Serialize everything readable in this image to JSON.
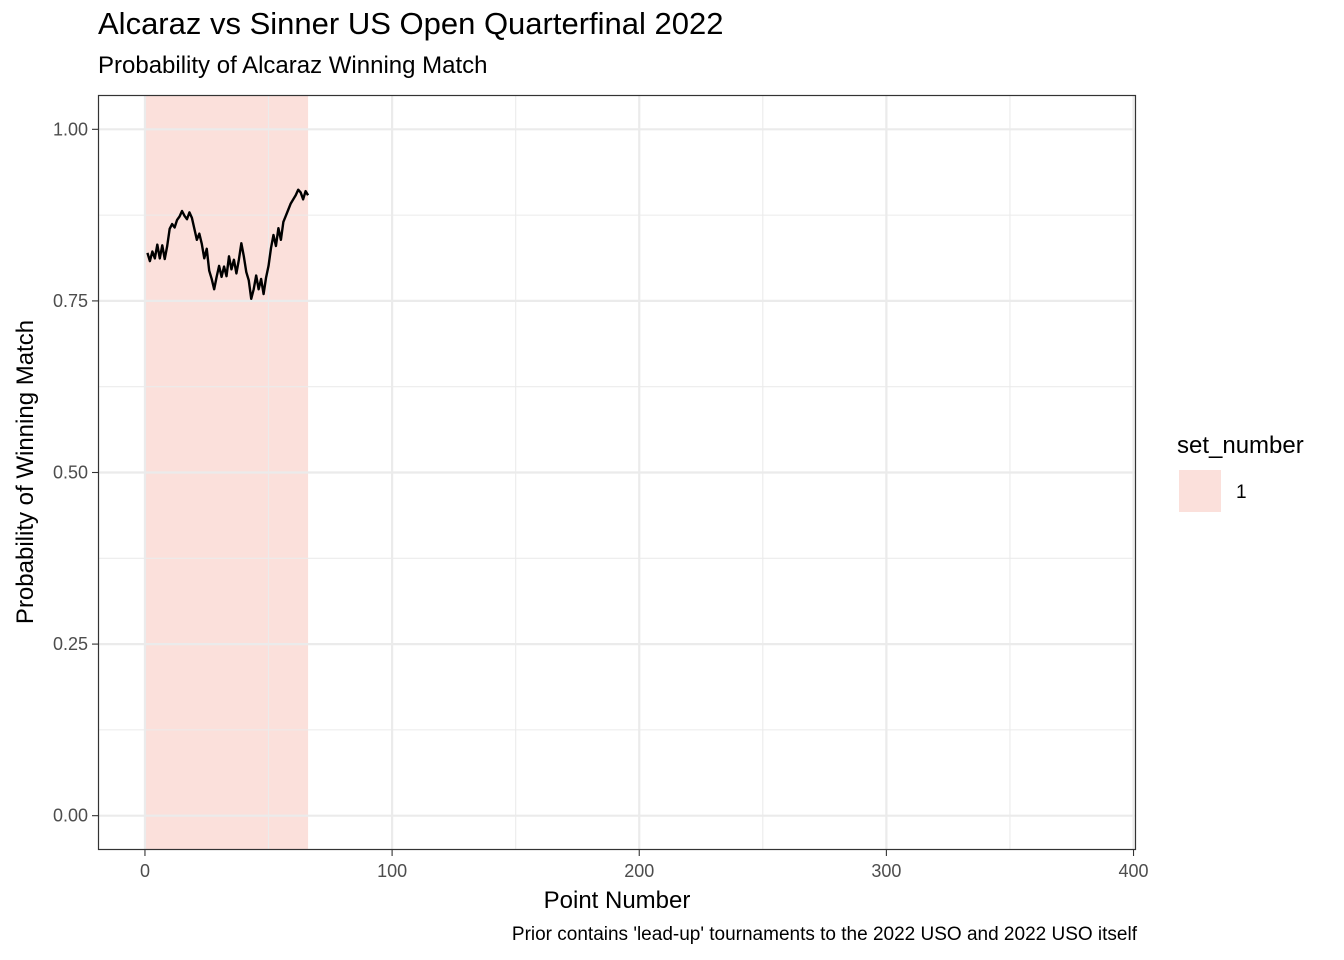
{
  "chart_data": {
    "type": "line",
    "title": "Alcaraz vs Sinner US Open Quarterfinal 2022",
    "subtitle": "Probability of Alcaraz Winning Match",
    "caption": "Prior contains 'lead-up' tournaments to the 2022 USO and 2022 USO itself",
    "xlabel": "Point Number",
    "ylabel": "Probability of Winning Match",
    "xlim": [
      -19,
      401
    ],
    "ylim": [
      -0.05,
      1.05
    ],
    "x_ticks": [
      0,
      100,
      200,
      300,
      400
    ],
    "x_tick_labels": [
      "0",
      "100",
      "200",
      "300",
      "400"
    ],
    "y_ticks": [
      0,
      0.25,
      0.5,
      0.75,
      1.0
    ],
    "y_tick_labels": [
      "0.00",
      "0.25",
      "0.50",
      "0.75",
      "1.00"
    ],
    "grid": true,
    "legend": {
      "title": "set_number",
      "position": "right",
      "entries": [
        {
          "label": "1",
          "color": "#fbe0db"
        }
      ]
    },
    "bands": [
      {
        "set_number": "1",
        "x_start": 0,
        "x_end": 66,
        "color": "#fbe0db"
      }
    ],
    "series": [
      {
        "color": "#000000",
        "x": [
          1,
          2,
          3,
          4,
          5,
          6,
          7,
          8,
          9,
          10,
          11,
          12,
          13,
          14,
          15,
          16,
          17,
          18,
          19,
          20,
          21,
          22,
          23,
          24,
          25,
          26,
          27,
          28,
          29,
          30,
          31,
          32,
          33,
          34,
          35,
          36,
          37,
          38,
          39,
          40,
          41,
          42,
          43,
          44,
          45,
          46,
          47,
          48,
          49,
          50,
          51,
          52,
          53,
          54,
          55,
          56,
          57,
          58,
          59,
          60,
          61,
          62,
          63,
          64,
          65,
          66
        ],
        "y": [
          0.82,
          0.808,
          0.822,
          0.812,
          0.832,
          0.812,
          0.831,
          0.811,
          0.83,
          0.855,
          0.862,
          0.857,
          0.868,
          0.873,
          0.881,
          0.874,
          0.869,
          0.879,
          0.871,
          0.855,
          0.839,
          0.848,
          0.833,
          0.812,
          0.826,
          0.794,
          0.782,
          0.767,
          0.785,
          0.801,
          0.785,
          0.8,
          0.786,
          0.815,
          0.796,
          0.81,
          0.79,
          0.81,
          0.834,
          0.815,
          0.792,
          0.78,
          0.753,
          0.767,
          0.787,
          0.767,
          0.782,
          0.76,
          0.784,
          0.801,
          0.827,
          0.846,
          0.83,
          0.856,
          0.839,
          0.865,
          0.874,
          0.883,
          0.892,
          0.898,
          0.904,
          0.912,
          0.908,
          0.898,
          0.91,
          0.904
        ]
      }
    ]
  }
}
